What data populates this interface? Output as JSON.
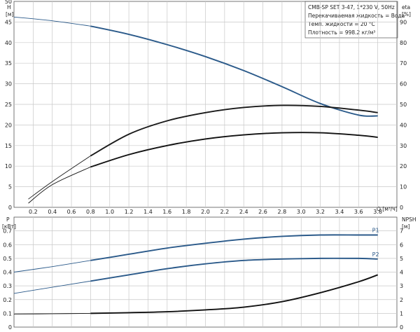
{
  "info_box": {
    "title": "CMB-SP SET 3-47, 1*230 V, 50Hz",
    "line1": "Перекачиваемая жидкость = Вода",
    "line2": "Темп. жидкости = 20 °C",
    "line3": "Плотность = 998.2 кг/м³"
  },
  "chart_data": [
    {
      "type": "line",
      "title": "",
      "x_unit": "Q [м³/ч]",
      "y_left_unit": [
        "H",
        "[м]"
      ],
      "y_right_unit": [
        "eta",
        "[%]"
      ],
      "xlim": [
        0,
        4.0
      ],
      "ylim_left": [
        0,
        50
      ],
      "ylim_right": [
        0,
        100
      ],
      "grid": true,
      "x_ticks": [
        "0.2",
        "0.4",
        "0.6",
        "0.8",
        "1.0",
        "1.2",
        "1.4",
        "1.6",
        "1.8",
        "2.0",
        "2.2",
        "2.4",
        "2.6",
        "2.8",
        "3.0",
        "3.2",
        "3.4",
        "3.6",
        "3.8"
      ],
      "y_left_ticks": [
        "0",
        "5",
        "10",
        "15",
        "20",
        "25",
        "30",
        "35",
        "40",
        "45",
        "50"
      ],
      "y_right_ticks": [
        "0",
        "10",
        "20",
        "30",
        "40",
        "50",
        "60",
        "70",
        "80",
        "90"
      ],
      "series": [
        {
          "color": "#2b5a8a",
          "axis": "left",
          "x": [
            0,
            0.4,
            0.8,
            1.2,
            1.6,
            2.0,
            2.4,
            2.8,
            3.2,
            3.6,
            3.8
          ],
          "y": [
            46.2,
            45.3,
            44.0,
            42.0,
            39.5,
            36.6,
            33.2,
            29.3,
            25.2,
            22.4,
            22.2
          ]
        },
        {
          "color": "#1a1a1a",
          "axis": "right",
          "x": [
            0.15,
            0.4,
            0.8,
            1.2,
            1.6,
            2.0,
            2.4,
            2.8,
            3.2,
            3.6,
            3.8
          ],
          "y": [
            4.0,
            12.5,
            25.0,
            35.5,
            42.0,
            46.0,
            48.5,
            49.5,
            49.0,
            47.2,
            46.0
          ]
        },
        {
          "color": "#111111",
          "axis": "left",
          "x": [
            0.15,
            0.4,
            0.8,
            1.2,
            1.6,
            2.0,
            2.4,
            2.8,
            3.2,
            3.6,
            3.8
          ],
          "y": [
            1.0,
            5.5,
            9.8,
            12.8,
            15.0,
            16.6,
            17.6,
            18.1,
            18.1,
            17.5,
            17.0
          ]
        }
      ]
    },
    {
      "type": "line",
      "title": "",
      "y_left_unit": [
        "P",
        "[кВт]"
      ],
      "y_right_unit": [
        "NPSH",
        "[м]"
      ],
      "xlim": [
        0,
        4.0
      ],
      "ylim_left": [
        0,
        0.8
      ],
      "ylim_right": [
        0,
        8
      ],
      "grid": true,
      "y_left_ticks": [
        "0",
        "0.1",
        "0.2",
        "0.3",
        "0.4",
        "0.5",
        "0.6",
        "0.7"
      ],
      "y_right_ticks": [
        "0",
        "1",
        "2",
        "3",
        "4",
        "5",
        "6",
        "7"
      ],
      "series": [
        {
          "name": "P1",
          "color": "#2b5a8a",
          "axis": "left",
          "x": [
            0,
            0.4,
            0.8,
            1.2,
            1.6,
            2.0,
            2.4,
            2.8,
            3.2,
            3.6,
            3.8
          ],
          "y": [
            0.4,
            0.44,
            0.485,
            0.53,
            0.575,
            0.61,
            0.64,
            0.66,
            0.67,
            0.67,
            0.67
          ]
        },
        {
          "name": "P2",
          "color": "#2b5a8a",
          "axis": "left",
          "x": [
            0,
            0.4,
            0.8,
            1.2,
            1.6,
            2.0,
            2.4,
            2.8,
            3.2,
            3.6,
            3.8
          ],
          "y": [
            0.245,
            0.29,
            0.335,
            0.38,
            0.425,
            0.46,
            0.485,
            0.495,
            0.5,
            0.5,
            0.495
          ]
        },
        {
          "color": "#111111",
          "axis": "right",
          "x": [
            0,
            0.4,
            0.8,
            1.2,
            1.6,
            2.0,
            2.4,
            2.8,
            3.2,
            3.6,
            3.8
          ],
          "y": [
            0.95,
            0.97,
            1.0,
            1.05,
            1.12,
            1.25,
            1.45,
            1.85,
            2.5,
            3.3,
            3.8
          ]
        }
      ]
    }
  ]
}
